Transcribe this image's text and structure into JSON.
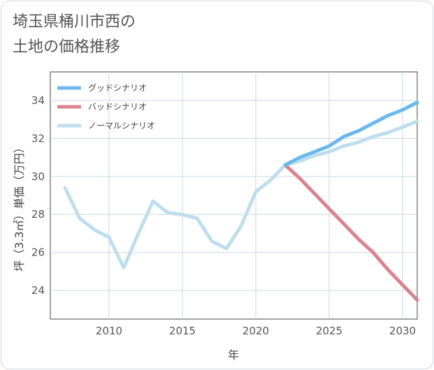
{
  "header": {
    "title_line1": "埼玉県桶川市西の",
    "title_line2": "土地の価格推移"
  },
  "chart_data": {
    "type": "line",
    "title": "埼玉県桶川市西の土地の価格推移",
    "xlabel": "年",
    "ylabel": "坪（3.3㎡）単価（万円）",
    "xlim": [
      2006,
      2031
    ],
    "ylim": [
      22.5,
      35.5
    ],
    "xticks": [
      2010,
      2015,
      2020,
      2025,
      2030
    ],
    "yticks": [
      24,
      26,
      28,
      30,
      32,
      34
    ],
    "grid": true,
    "legend_position": "top-left",
    "series": [
      {
        "name": "グッドシナリオ",
        "color": "#6cb8ec",
        "x": [
          2022,
          2023,
          2024,
          2025,
          2026,
          2027,
          2028,
          2029,
          2030,
          2031
        ],
        "y": [
          30.6,
          31.0,
          31.3,
          31.6,
          32.1,
          32.4,
          32.8,
          33.2,
          33.5,
          33.9
        ]
      },
      {
        "name": "バッドシナリオ",
        "color": "#d9838f",
        "x": [
          2022,
          2023,
          2024,
          2025,
          2026,
          2027,
          2028,
          2029,
          2030,
          2031
        ],
        "y": [
          30.6,
          29.9,
          29.1,
          28.3,
          27.5,
          26.7,
          26.0,
          25.1,
          24.3,
          23.5
        ]
      },
      {
        "name": "ノーマルシナリオ",
        "color": "#bfdeed",
        "x": [
          2007,
          2008,
          2009,
          2010,
          2011,
          2012,
          2013,
          2014,
          2015,
          2016,
          2017,
          2018,
          2019,
          2020,
          2021,
          2022,
          2023,
          2024,
          2025,
          2026,
          2027,
          2028,
          2029,
          2030,
          2031
        ],
        "y": [
          29.4,
          27.8,
          27.2,
          26.8,
          25.2,
          27.0,
          28.7,
          28.1,
          28.0,
          27.8,
          26.6,
          26.2,
          27.4,
          29.2,
          29.8,
          30.6,
          30.8,
          31.1,
          31.3,
          31.6,
          31.8,
          32.1,
          32.3,
          32.6,
          32.9
        ]
      }
    ]
  }
}
